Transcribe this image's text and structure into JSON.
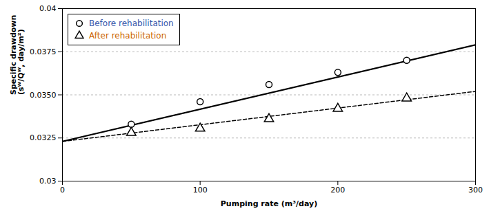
{
  "chart_data": {
    "type": "scatter",
    "xlabel": "Pumping rate (m³/day)",
    "ylabel": "Specific drawdown\n(sᵂ/Qᵂ, day/m²)",
    "xlim": [
      0,
      300
    ],
    "xticks": [
      0,
      100,
      200,
      300
    ],
    "ylim": [
      0.03,
      0.04
    ],
    "yticks": [
      0.03,
      0.0325,
      {
        "value": 0.035,
        "label": "0.0350"
      },
      0.0375,
      0.04
    ],
    "grid": true,
    "legend": "upper left",
    "series": [
      {
        "type": "line",
        "line_style": "solid",
        "color": "#000000",
        "x": [
          0,
          300
        ],
        "values": [
          0.0323,
          0.0379
        ]
      },
      {
        "type": "line",
        "line_style": "dashed",
        "color": "#000000",
        "x": [
          0,
          300
        ],
        "values": [
          0.0323,
          0.0352
        ]
      },
      {
        "name": "Before rehabilitation",
        "type": "scatter",
        "marker": "circle",
        "color": "#3355aa",
        "x": [
          50,
          100,
          150,
          200,
          250
        ],
        "values": [
          0.0333,
          0.0346,
          0.0356,
          0.0363,
          0.037
        ]
      },
      {
        "name": "After rehabilitation",
        "type": "scatter",
        "marker": "triangle",
        "color": "#cc6600",
        "x": [
          50,
          100,
          150,
          200,
          250
        ],
        "values": [
          0.0328,
          0.03305,
          0.0336,
          0.0342,
          0.0348
        ]
      }
    ]
  }
}
